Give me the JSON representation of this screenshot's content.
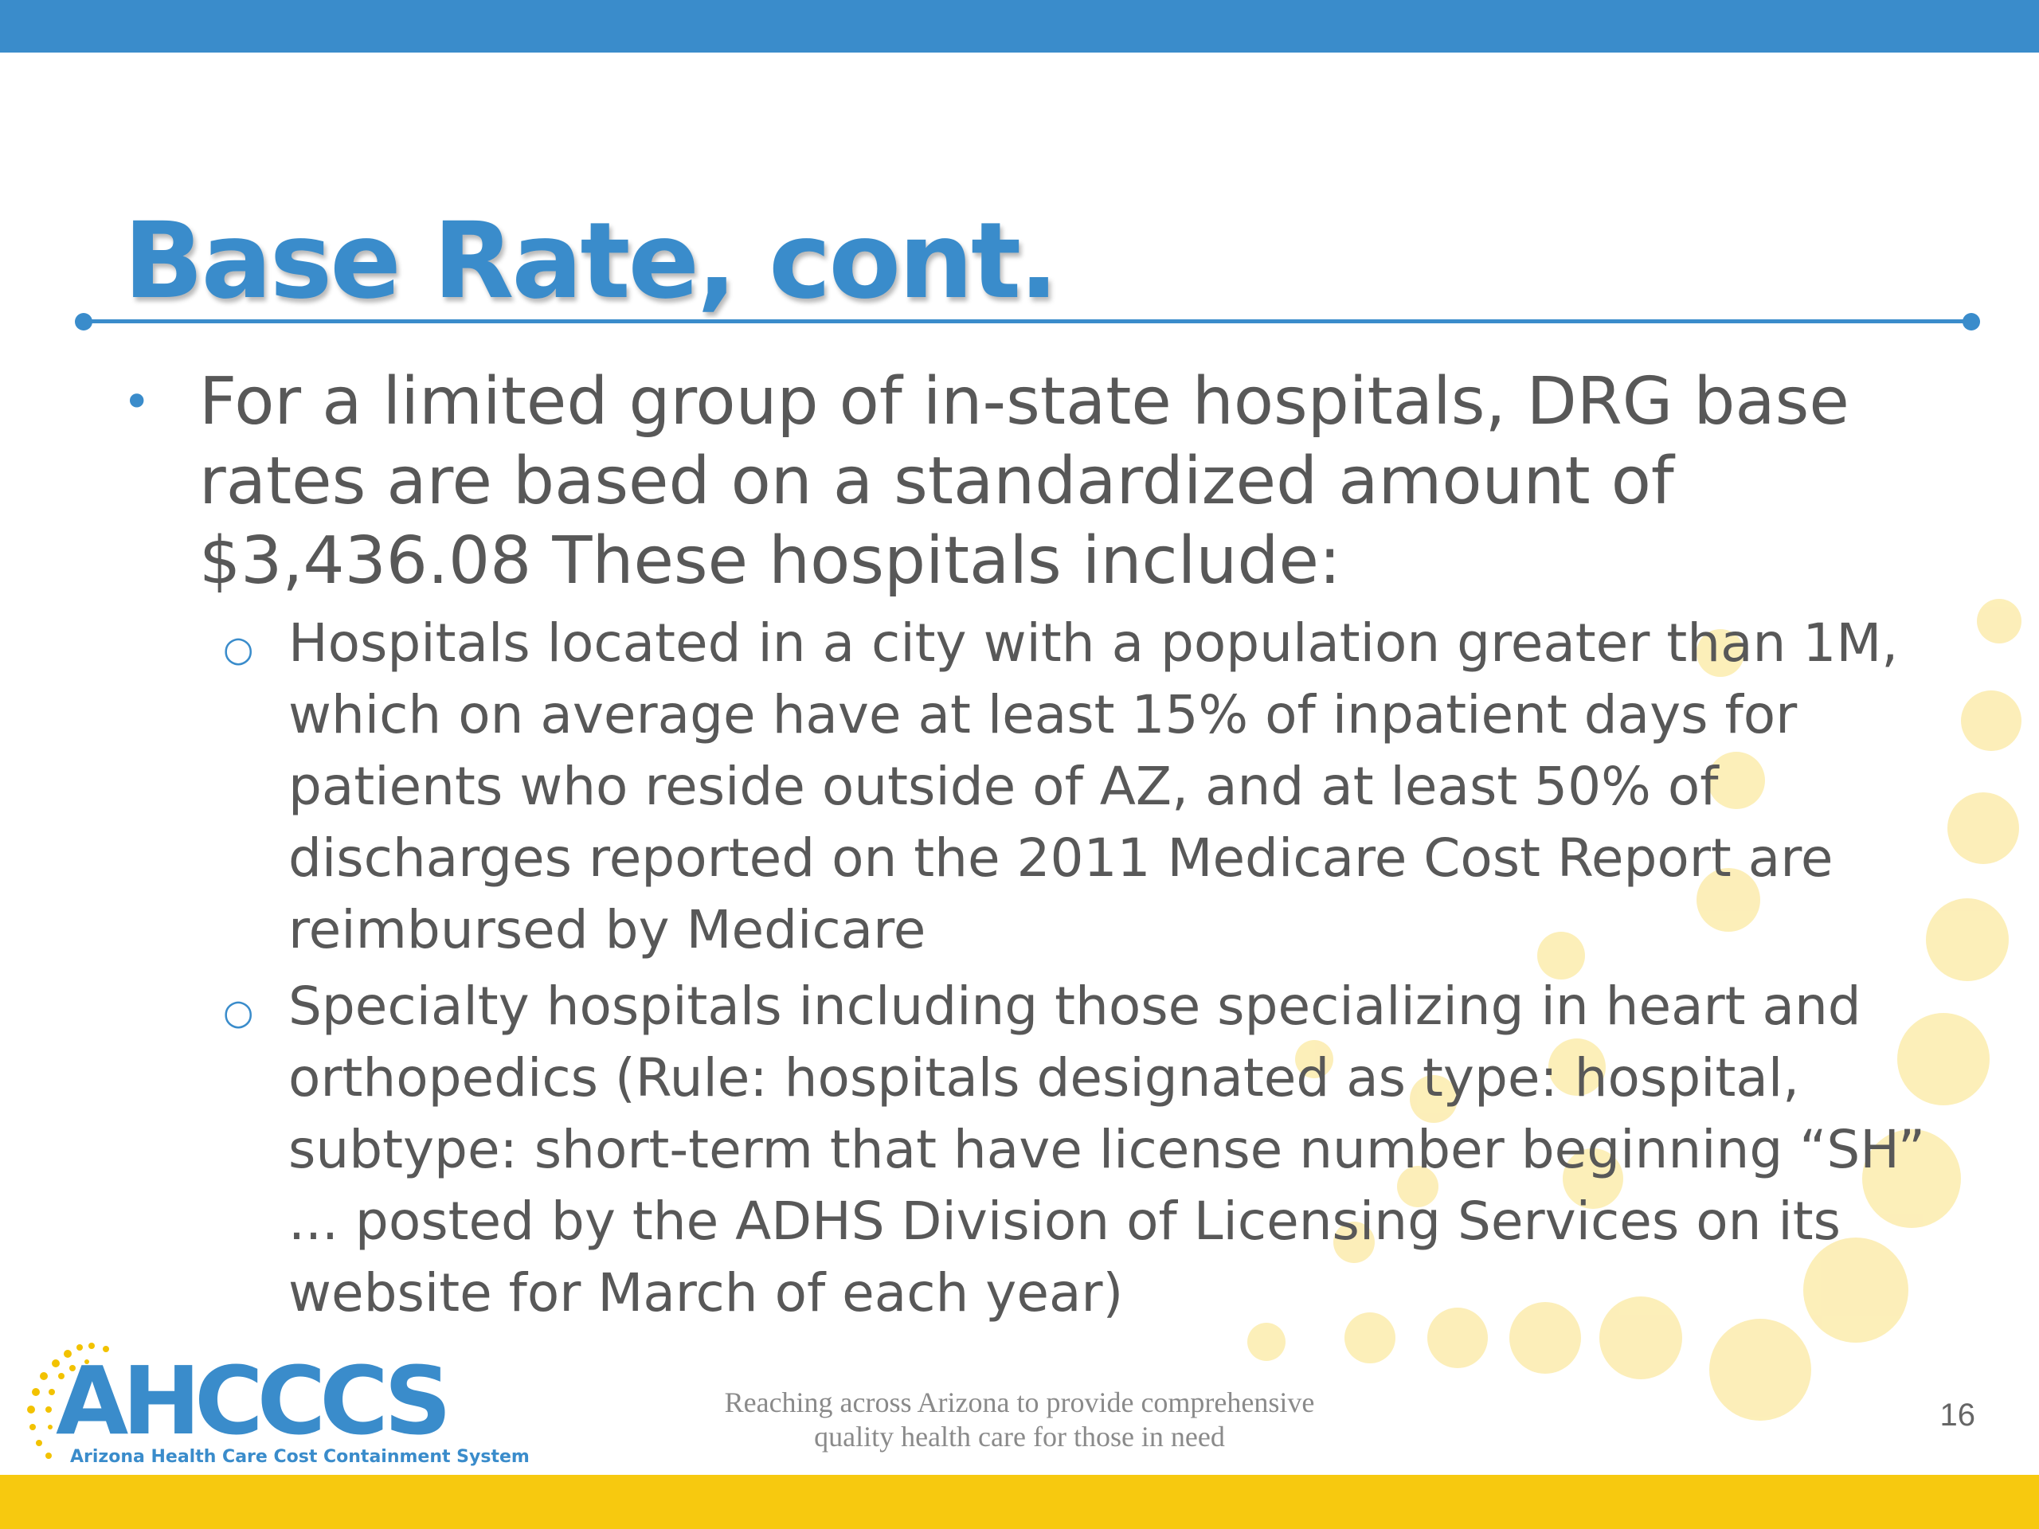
{
  "slide": {
    "title": "Base Rate, cont.",
    "bullet1_text": "For a limited group of in-state hospitals, DRG base rates are based on a standardized amount of $3,436.08 These hospitals include:",
    "sub_bullets": [
      "Hospitals located in a city with a population greater than 1M, which on average have at least 15% of inpatient days for patients who reside outside of AZ, and at least 50% of discharges reported on the 2011 Medicare Cost Report are reimbursed by Medicare",
      "Specialty hospitals including those specializing in heart and orthopedics (Rule:  hospitals designated as type: hospital, subtype: short-term that have license number beginning “SH” ... posted by the ADHS Division of Licensing Services on its website for March of each year)"
    ]
  },
  "footer": {
    "logo_text": "AHCCCS",
    "logo_subtitle": "Arizona Health Care Cost Containment System",
    "tagline_line1": "Reaching across Arizona to provide comprehensive",
    "tagline_line2": "quality health care for those in need",
    "page_number": "16"
  },
  "colors": {
    "accent_blue": "#3a8ccb",
    "accent_yellow": "#f7c90f",
    "body_text": "#585858"
  }
}
